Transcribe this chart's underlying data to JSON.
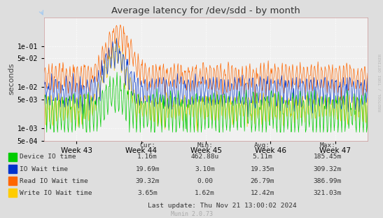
{
  "title": "Average latency for /dev/sdd - by month",
  "ylabel": "seconds",
  "xlabel_ticks": [
    "Week 43",
    "Week 44",
    "Week 45",
    "Week 46",
    "Week 47"
  ],
  "yticks": [
    0.0005,
    0.001,
    0.005,
    0.01,
    0.05,
    0.1
  ],
  "ytick_labels": [
    "5e-04",
    "1e-03",
    "5e-03",
    "1e-02",
    "5e-02",
    "1e-01"
  ],
  "bg_color": "#dedede",
  "plot_bg_color": "#f0f0f0",
  "grid_color": "#ffffff",
  "series": [
    {
      "name": "Device IO time",
      "color": "#00cc00"
    },
    {
      "name": "IO Wait time",
      "color": "#0033cc"
    },
    {
      "name": "Read IO Wait time",
      "color": "#ff6600"
    },
    {
      "name": "Write IO Wait time",
      "color": "#ffcc00"
    }
  ],
  "legend_headers": [
    "Cur:",
    "Min:",
    "Avg:",
    "Max:"
  ],
  "legend_rows": [
    [
      "Device IO time",
      "1.16m",
      "462.88u",
      "5.11m",
      "185.45m"
    ],
    [
      "IO Wait time",
      "19.69m",
      "3.10m",
      "19.35m",
      "309.32m"
    ],
    [
      "Read IO Wait time",
      "39.32m",
      "0.00",
      "26.79m",
      "386.99m"
    ],
    [
      "Write IO Wait time",
      "3.65m",
      "1.62m",
      "12.42m",
      "321.03m"
    ]
  ],
  "footer": "Last update: Thu Nov 21 13:00:02 2024",
  "watermark": "Munin 2.0.73",
  "side_label": "RRDTOOL / TOBI OETIKER",
  "n_points": 600,
  "seed": 42
}
